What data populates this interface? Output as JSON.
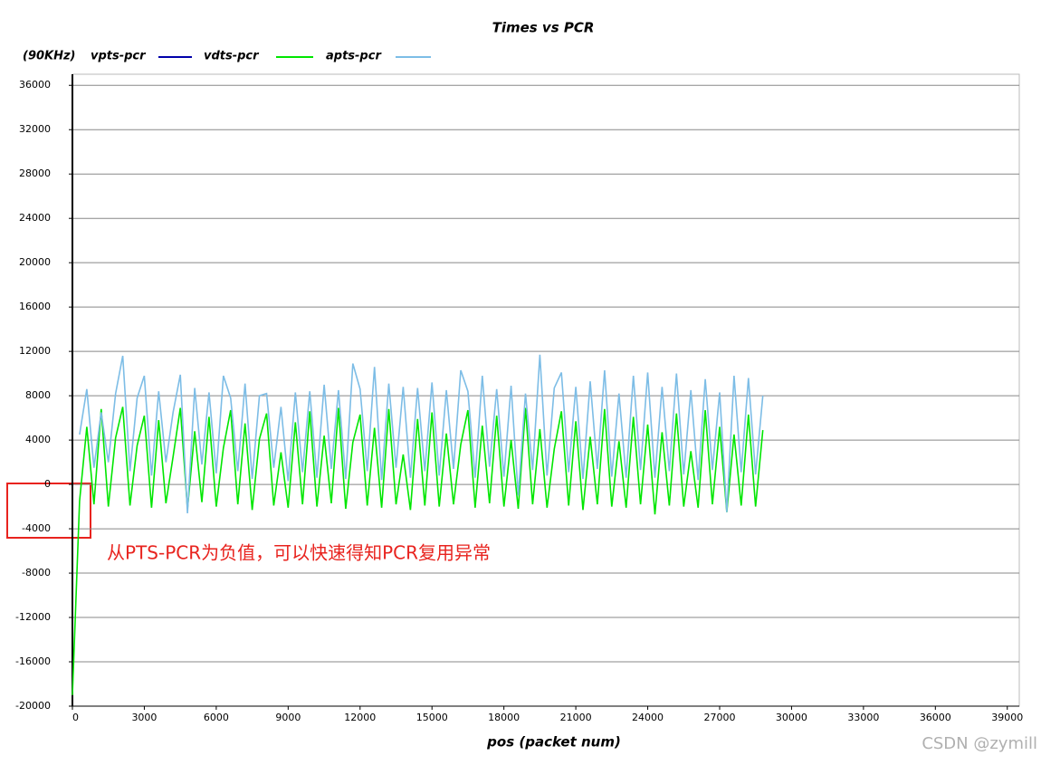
{
  "chart_data": {
    "type": "line",
    "title": "Times vs PCR",
    "unit_label": "(90KHz)",
    "x_label": "pos (packet num)",
    "annotation": "从PTS-PCR为负值，可以快速得知PCR复用异常",
    "watermark": "CSDN @zymill",
    "xlim": [
      0,
      39500
    ],
    "ylim": [
      -20000,
      37000
    ],
    "xticks": [
      0,
      3000,
      6000,
      9000,
      12000,
      15000,
      18000,
      21000,
      24000,
      27000,
      30000,
      33000,
      36000,
      39000
    ],
    "yticks": [
      -20000,
      -16000,
      -12000,
      -8000,
      -4000,
      0,
      4000,
      8000,
      12000,
      16000,
      20000,
      24000,
      28000,
      32000,
      36000
    ],
    "grid": true,
    "x": [
      0,
      300,
      600,
      900,
      1200,
      1500,
      1800,
      2100,
      2400,
      2700,
      3000,
      3300,
      3600,
      3900,
      4200,
      4500,
      4800,
      5100,
      5400,
      5700,
      6000,
      6300,
      6600,
      6900,
      7200,
      7500,
      7800,
      8100,
      8400,
      8700,
      9000,
      9300,
      9600,
      9900,
      10200,
      10500,
      10800,
      11100,
      11400,
      11700,
      12000,
      12300,
      12600,
      12900,
      13200,
      13500,
      13800,
      14100,
      14400,
      14700,
      15000,
      15300,
      15600,
      15900,
      16200,
      16500,
      16800,
      17100,
      17400,
      17700,
      18000,
      18300,
      18600,
      18900,
      19200,
      19500,
      19800,
      20100,
      20400,
      20700,
      21000,
      21300,
      21600,
      21900,
      22200,
      22500,
      22800,
      23100,
      23400,
      23700,
      24000,
      24300,
      24600,
      24900,
      25200,
      25500,
      25800,
      26100,
      26400,
      26700,
      27000,
      27300,
      27600,
      27900,
      28200,
      28500,
      28800
    ],
    "series": [
      {
        "name": "vpts-pcr",
        "color": "#0000aa",
        "values": [
          null,
          null,
          null,
          null,
          null,
          null,
          null,
          null,
          null,
          null,
          null,
          null,
          null,
          null,
          null,
          null,
          null,
          null,
          null,
          null,
          null,
          null,
          null,
          null,
          null,
          null,
          null,
          null,
          null,
          null,
          null,
          null,
          null,
          null,
          null,
          null,
          null,
          null,
          null,
          null,
          null,
          null,
          null,
          null,
          null,
          null,
          null,
          null,
          null,
          null,
          null,
          null,
          null,
          null,
          null,
          null,
          null,
          null,
          null,
          null,
          null,
          null,
          null,
          null,
          null,
          null,
          null,
          null,
          null,
          null,
          null,
          null,
          null,
          null,
          null,
          null,
          null,
          null,
          null,
          null,
          null,
          null,
          null,
          null,
          null,
          null,
          null,
          null,
          null,
          null,
          null,
          null,
          null,
          null,
          null,
          null,
          null
        ]
      },
      {
        "name": "vdts-pcr",
        "color": "#00e600",
        "values": [
          -19000,
          -1500,
          5200,
          -1800,
          6800,
          -2000,
          4200,
          7000,
          -1900,
          3500,
          6200,
          -2100,
          5800,
          -1700,
          2500,
          6900,
          -2200,
          4800,
          -1600,
          6100,
          -2000,
          3300,
          6700,
          -1800,
          5500,
          -2300,
          4100,
          6400,
          -1900,
          2900,
          -2100,
          5600,
          -1800,
          6600,
          -2000,
          4400,
          -1700,
          6900,
          -2200,
          3800,
          6300,
          -1900,
          5100,
          -2100,
          6800,
          -1800,
          2700,
          -2300,
          5900,
          -1900,
          6500,
          -2000,
          4600,
          -1800,
          3600,
          6700,
          -2100,
          5300,
          -1700,
          6200,
          -2000,
          4000,
          -2200,
          6900,
          -1800,
          5000,
          -2100,
          3200,
          6600,
          -1900,
          5700,
          -2300,
          4300,
          -1800,
          6800,
          -2000,
          3900,
          -2100,
          6100,
          -1800,
          5400,
          -2700,
          4700,
          -1900,
          6400,
          -2000,
          3000,
          -2100,
          6700,
          -1800,
          5200,
          -2500,
          4500,
          -1900,
          6300,
          -2000,
          4900
        ]
      },
      {
        "name": "apts-pcr",
        "color": "#7dbde6",
        "values": [
          null,
          4500,
          8600,
          1500,
          6500,
          2000,
          8200,
          11600,
          1200,
          7800,
          9800,
          800,
          8400,
          2000,
          6500,
          9900,
          -2600,
          8700,
          1800,
          8300,
          1000,
          9800,
          7800,
          1200,
          9100,
          500,
          8000,
          8200,
          1500,
          7000,
          300,
          8300,
          1100,
          8400,
          600,
          9000,
          1400,
          8500,
          500,
          10900,
          8600,
          1200,
          10600,
          400,
          9100,
          1500,
          8800,
          600,
          8700,
          1200,
          9200,
          800,
          8500,
          1400,
          10300,
          8400,
          600,
          9800,
          1600,
          8600,
          700,
          8900,
          -1000,
          8200,
          1300,
          11700,
          800,
          8700,
          10100,
          1100,
          8800,
          500,
          9300,
          1400,
          10300,
          700,
          8200,
          600,
          9800,
          1300,
          10100,
          600,
          8800,
          1200,
          10000,
          900,
          8500,
          400,
          9500,
          1300,
          8300,
          -2500,
          9800,
          1100,
          9600,
          900,
          8000
        ]
      }
    ]
  }
}
